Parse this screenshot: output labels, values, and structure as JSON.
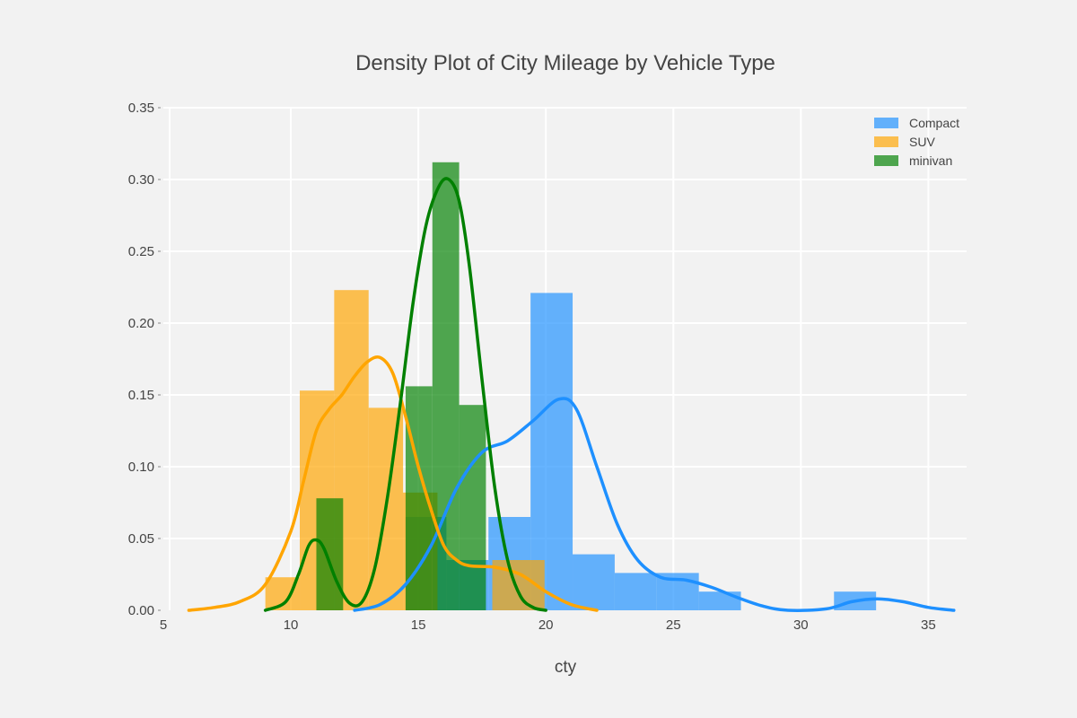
{
  "chart_data": {
    "type": "histogram-density",
    "title": "Density Plot of City Mileage by Vehicle Type",
    "xlabel": "cty",
    "ylabel": "",
    "xlim": [
      5,
      36.5
    ],
    "ylim": [
      0,
      0.35
    ],
    "x_ticks": [
      "5",
      "10",
      "15",
      "20",
      "25",
      "30",
      "35"
    ],
    "y_ticks": [
      "0.00",
      "0.05",
      "0.10",
      "0.15",
      "0.20",
      "0.25",
      "0.30",
      "0.35"
    ],
    "legend_position": "top-right",
    "grid": true,
    "series": [
      {
        "name": "Compact",
        "color": "#1e90ff",
        "bar_opacity": 0.68,
        "bins": [
          {
            "x0": 14.5,
            "x1": 16.1,
            "y": 0.065
          },
          {
            "x0": 16.1,
            "x1": 17.75,
            "y": 0.035
          },
          {
            "x0": 17.75,
            "x1": 19.4,
            "y": 0.065
          },
          {
            "x0": 19.4,
            "x1": 21.05,
            "y": 0.221
          },
          {
            "x0": 21.05,
            "x1": 22.7,
            "y": 0.039
          },
          {
            "x0": 22.7,
            "x1": 24.35,
            "y": 0.026
          },
          {
            "x0": 24.35,
            "x1": 26.0,
            "y": 0.026
          },
          {
            "x0": 26.0,
            "x1": 27.65,
            "y": 0.013
          },
          {
            "x0": 31.3,
            "x1": 32.95,
            "y": 0.013
          }
        ],
        "kde": [
          [
            12.5,
            0.0
          ],
          [
            13.5,
            0.004
          ],
          [
            14.5,
            0.018
          ],
          [
            15.5,
            0.045
          ],
          [
            16.5,
            0.085
          ],
          [
            17.5,
            0.11
          ],
          [
            18.5,
            0.118
          ],
          [
            19.5,
            0.132
          ],
          [
            20.5,
            0.147
          ],
          [
            21.2,
            0.14
          ],
          [
            22.0,
            0.1
          ],
          [
            22.8,
            0.06
          ],
          [
            23.6,
            0.035
          ],
          [
            24.5,
            0.023
          ],
          [
            25.5,
            0.021
          ],
          [
            26.5,
            0.016
          ],
          [
            27.5,
            0.009
          ],
          [
            28.5,
            0.003
          ],
          [
            29.5,
            0.0
          ],
          [
            31.0,
            0.001
          ],
          [
            32.0,
            0.006
          ],
          [
            33.0,
            0.008
          ],
          [
            34.0,
            0.006
          ],
          [
            35.0,
            0.002
          ],
          [
            36.0,
            0.0
          ]
        ]
      },
      {
        "name": "SUV",
        "color": "#ffa500",
        "bar_opacity": 0.68,
        "bins": [
          {
            "x0": 9.0,
            "x1": 10.35,
            "y": 0.023
          },
          {
            "x0": 10.35,
            "x1": 11.7,
            "y": 0.153
          },
          {
            "x0": 11.7,
            "x1": 13.05,
            "y": 0.223
          },
          {
            "x0": 13.05,
            "x1": 14.4,
            "y": 0.141
          },
          {
            "x0": 14.4,
            "x1": 15.75,
            "y": 0.082
          },
          {
            "x0": 17.9,
            "x1": 19.95,
            "y": 0.035
          }
        ],
        "kde": [
          [
            6.0,
            0.0
          ],
          [
            7.0,
            0.002
          ],
          [
            8.0,
            0.006
          ],
          [
            9.0,
            0.018
          ],
          [
            10.0,
            0.055
          ],
          [
            10.5,
            0.09
          ],
          [
            11.0,
            0.125
          ],
          [
            11.5,
            0.14
          ],
          [
            12.0,
            0.15
          ],
          [
            12.5,
            0.163
          ],
          [
            13.0,
            0.173
          ],
          [
            13.5,
            0.176
          ],
          [
            14.0,
            0.165
          ],
          [
            14.5,
            0.135
          ],
          [
            15.0,
            0.1
          ],
          [
            15.5,
            0.07
          ],
          [
            16.0,
            0.045
          ],
          [
            16.5,
            0.035
          ],
          [
            17.0,
            0.031
          ],
          [
            18.0,
            0.03
          ],
          [
            19.0,
            0.025
          ],
          [
            20.0,
            0.013
          ],
          [
            21.0,
            0.004
          ],
          [
            22.0,
            0.0
          ]
        ]
      },
      {
        "name": "minivan",
        "color": "#008000",
        "bar_opacity": 0.68,
        "bins": [
          {
            "x0": 11.0,
            "x1": 12.05,
            "y": 0.078
          },
          {
            "x0": 14.5,
            "x1": 15.55,
            "y": 0.156
          },
          {
            "x0": 15.55,
            "x1": 16.6,
            "y": 0.312
          },
          {
            "x0": 16.6,
            "x1": 17.65,
            "y": 0.143
          }
        ],
        "kde": [
          [
            9.0,
            0.0
          ],
          [
            9.8,
            0.006
          ],
          [
            10.3,
            0.025
          ],
          [
            10.7,
            0.045
          ],
          [
            11.0,
            0.049
          ],
          [
            11.3,
            0.043
          ],
          [
            11.8,
            0.02
          ],
          [
            12.3,
            0.005
          ],
          [
            12.8,
            0.006
          ],
          [
            13.3,
            0.03
          ],
          [
            13.8,
            0.08
          ],
          [
            14.3,
            0.145
          ],
          [
            14.8,
            0.215
          ],
          [
            15.3,
            0.268
          ],
          [
            15.8,
            0.295
          ],
          [
            16.2,
            0.3
          ],
          [
            16.6,
            0.285
          ],
          [
            17.0,
            0.24
          ],
          [
            17.5,
            0.16
          ],
          [
            18.0,
            0.085
          ],
          [
            18.5,
            0.035
          ],
          [
            19.0,
            0.01
          ],
          [
            19.5,
            0.002
          ],
          [
            20.0,
            0.0
          ]
        ]
      }
    ]
  }
}
